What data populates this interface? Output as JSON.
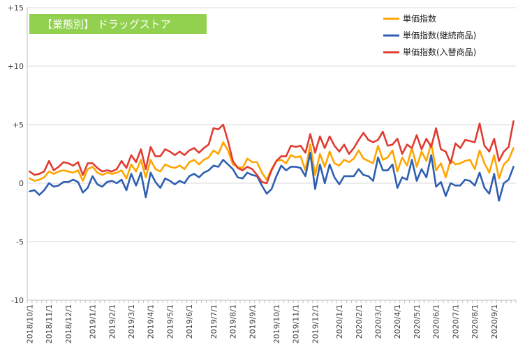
{
  "chart_data": {
    "type": "line",
    "title_box": {
      "text": "【業態別】 ドラッグストア",
      "fill": "#92d050",
      "text_color": "#ffffff"
    },
    "ylim": [
      -10,
      15
    ],
    "y_ticks": [
      {
        "value": 15,
        "label": "+15"
      },
      {
        "value": 10,
        "label": "+10"
      },
      {
        "value": 5,
        "label": "+5"
      },
      {
        "value": 0,
        "label": "0"
      },
      {
        "value": -5,
        "label": "-5"
      },
      {
        "value": -10,
        "label": "-10"
      }
    ],
    "grid": "horizontal",
    "legend_position": "top-right",
    "x_ticks": [
      {
        "index": 0,
        "label": "2018/10/1"
      },
      {
        "index": 4,
        "label": "2018/11/1"
      },
      {
        "index": 8,
        "label": "2018/12/1"
      },
      {
        "index": 13,
        "label": "2019/1/1"
      },
      {
        "index": 17,
        "label": "2019/2/1"
      },
      {
        "index": 21,
        "label": "2019/3/1"
      },
      {
        "index": 25,
        "label": "2019/4/1"
      },
      {
        "index": 29,
        "label": "2019/5/1"
      },
      {
        "index": 33,
        "label": "2019/6/1"
      },
      {
        "index": 38,
        "label": "2019/7/1"
      },
      {
        "index": 42,
        "label": "2019/8/1"
      },
      {
        "index": 46,
        "label": "2019/9/1"
      },
      {
        "index": 51,
        "label": "2019/10/1"
      },
      {
        "index": 55,
        "label": "2019/11/1"
      },
      {
        "index": 59,
        "label": "2019/12/1"
      },
      {
        "index": 64,
        "label": "2020/1/1"
      },
      {
        "index": 68,
        "label": "2020/2/1"
      },
      {
        "index": 72,
        "label": "2020/3/1"
      },
      {
        "index": 76,
        "label": "2020/4/1"
      },
      {
        "index": 80,
        "label": "2020/5/1"
      },
      {
        "index": 84,
        "label": "2020/6/1"
      },
      {
        "index": 88,
        "label": "2020/7/1"
      },
      {
        "index": 92,
        "label": "2020/8/1"
      },
      {
        "index": 96,
        "label": "2020/9/1"
      }
    ],
    "series": [
      {
        "name": "単価指数",
        "color": "#ffa500",
        "values": [
          0.4,
          0.2,
          0.3,
          0.5,
          1.0,
          0.8,
          1.0,
          1.1,
          1.0,
          0.9,
          1.1,
          0.2,
          1.2,
          1.4,
          0.9,
          0.7,
          0.9,
          0.8,
          0.9,
          1.1,
          0.4,
          1.6,
          1.0,
          2.0,
          0.5,
          2.0,
          1.2,
          1.0,
          1.6,
          1.4,
          1.3,
          1.5,
          1.2,
          1.8,
          2.0,
          1.6,
          2.0,
          2.2,
          2.8,
          2.5,
          3.5,
          2.8,
          1.6,
          1.4,
          1.3,
          2.1,
          1.8,
          1.8,
          0.9,
          0.3,
          1.2,
          1.9,
          2.0,
          1.7,
          2.4,
          2.2,
          2.3,
          1.1,
          3.3,
          0.7,
          2.5,
          1.4,
          2.7,
          1.7,
          1.5,
          2.0,
          1.8,
          2.1,
          2.8,
          2.1,
          1.9,
          1.7,
          3.2,
          2.0,
          2.2,
          2.8,
          1.0,
          2.2,
          1.5,
          3.0,
          1.4,
          2.7,
          1.9,
          3.4,
          1.1,
          1.7,
          0.5,
          2.0,
          1.6,
          1.7,
          1.9,
          2.0,
          1.2,
          2.8,
          1.7,
          0.9,
          2.4,
          0.4,
          1.6,
          2.0,
          3.0
        ]
      },
      {
        "name": "単価指数(継続商品)",
        "color": "#2e5fb0",
        "values": [
          -0.7,
          -0.6,
          -1.0,
          -0.6,
          0.0,
          -0.3,
          -0.2,
          0.1,
          0.1,
          0.3,
          0.1,
          -0.8,
          -0.4,
          0.6,
          -0.1,
          -0.3,
          0.1,
          0.2,
          0.0,
          0.3,
          -0.6,
          0.8,
          -0.2,
          0.9,
          -1.2,
          0.9,
          0.1,
          -0.4,
          0.4,
          0.2,
          -0.1,
          0.2,
          0.0,
          0.6,
          0.8,
          0.5,
          0.9,
          1.1,
          1.5,
          1.4,
          2.0,
          1.6,
          1.2,
          0.5,
          0.4,
          0.9,
          0.7,
          0.6,
          -0.2,
          -0.9,
          -0.5,
          0.6,
          1.5,
          1.1,
          1.4,
          1.4,
          1.3,
          0.6,
          2.6,
          -0.5,
          1.6,
          0.0,
          1.6,
          0.5,
          -0.1,
          0.6,
          0.6,
          0.6,
          1.2,
          0.7,
          0.6,
          0.2,
          2.2,
          1.1,
          1.1,
          1.6,
          -0.4,
          0.5,
          0.3,
          2.0,
          0.2,
          1.2,
          0.5,
          2.4,
          -0.3,
          0.1,
          -1.1,
          0.0,
          -0.2,
          -0.2,
          0.3,
          0.2,
          -0.2,
          0.9,
          -0.4,
          -0.9,
          0.8,
          -1.5,
          0.0,
          0.3,
          1.4
        ]
      },
      {
        "name": "単価指数(入替商品)",
        "color": "#e03c31",
        "values": [
          1.0,
          0.7,
          0.8,
          1.0,
          1.9,
          1.1,
          1.4,
          1.8,
          1.7,
          1.5,
          1.8,
          0.7,
          1.7,
          1.7,
          1.3,
          1.0,
          1.1,
          1.0,
          1.2,
          1.9,
          1.3,
          2.4,
          1.8,
          2.9,
          1.2,
          3.1,
          2.3,
          2.3,
          2.9,
          2.7,
          2.4,
          2.7,
          2.4,
          2.8,
          3.0,
          2.6,
          3.0,
          3.3,
          4.7,
          4.6,
          5.0,
          3.6,
          1.9,
          1.3,
          1.1,
          1.4,
          1.2,
          0.7,
          0.1,
          0.0,
          1.1,
          1.9,
          2.3,
          2.3,
          3.2,
          3.1,
          3.2,
          2.6,
          4.2,
          2.6,
          4.0,
          3.0,
          4.0,
          3.2,
          2.7,
          3.3,
          2.5,
          3.0,
          3.7,
          4.3,
          3.7,
          3.5,
          3.7,
          4.4,
          3.2,
          3.3,
          3.8,
          2.5,
          3.3,
          3.0,
          4.1,
          2.9,
          3.8,
          3.1,
          4.7,
          2.9,
          2.7,
          1.7,
          3.4,
          3.0,
          3.7,
          3.6,
          3.5,
          5.1,
          3.2,
          2.7,
          3.8,
          1.9,
          2.7,
          3.1,
          5.3
        ]
      }
    ]
  }
}
